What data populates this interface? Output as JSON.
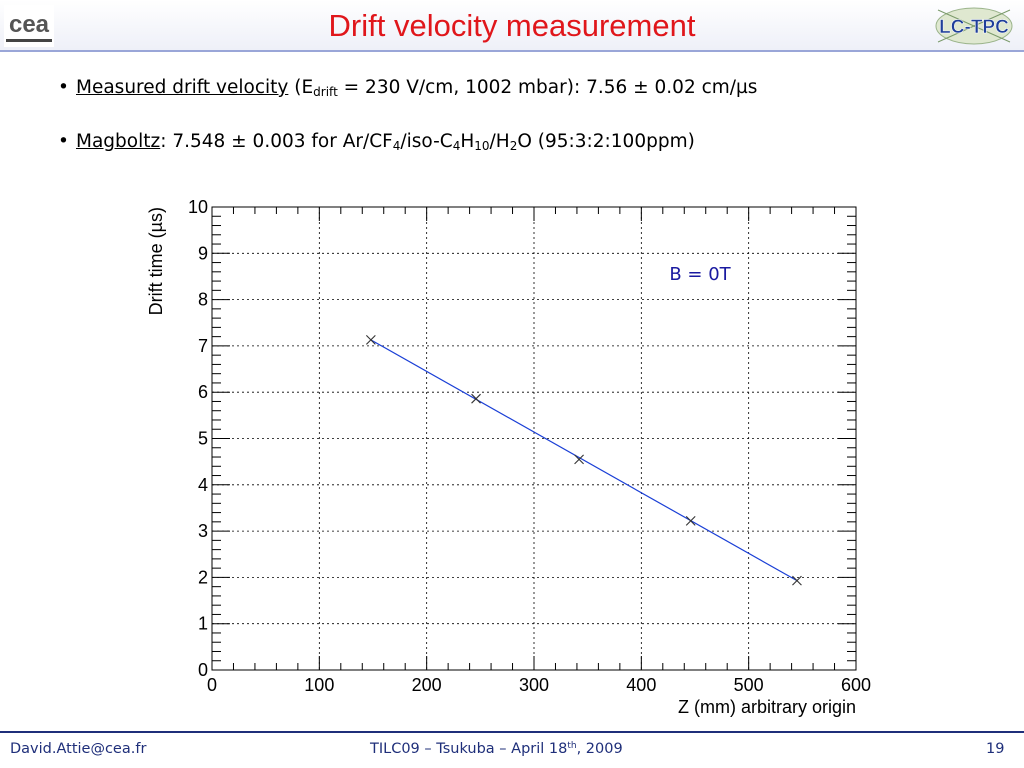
{
  "header": {
    "title": "Drift velocity measurement",
    "logo_left_text": "cea",
    "logo_right_text": "LC-TPC"
  },
  "bullets": [
    {
      "link": "Measured drift velocity",
      "pre": " (E",
      "sub": "drift",
      "post": " = 230 V/cm, 1002 mbar): 7.56 ± 0.02 cm/µs"
    },
    {
      "link": "Magboltz",
      "t1": ": 7.548 ± 0.003 for Ar/CF",
      "s1": "4",
      "t2": "/iso-C",
      "s2": "4",
      "t3": "H",
      "s3": "10",
      "t4": "/H",
      "s4": "2",
      "t5": "O (95:3:2:100ppm)"
    }
  ],
  "chart_data": {
    "type": "scatter",
    "xlabel": "Z (mm) arbitrary origin",
    "ylabel": "Drift time (µs)",
    "xlim": [
      0,
      600
    ],
    "ylim": [
      0,
      10
    ],
    "xticks": [
      0,
      100,
      200,
      300,
      400,
      500,
      600
    ],
    "yticks": [
      0,
      1,
      2,
      3,
      4,
      5,
      6,
      7,
      8,
      9,
      10
    ],
    "grid": true,
    "annotation": "B = 0T",
    "series": [
      {
        "marker": "x",
        "x": [
          148,
          246,
          342,
          446,
          545
        ],
        "y": [
          7.13,
          5.86,
          4.55,
          3.22,
          1.93
        ]
      }
    ],
    "fit": {
      "x": [
        148,
        545
      ],
      "y": [
        7.13,
        1.93
      ]
    },
    "colors": {
      "points": "#333333",
      "fit": "#1a3fd6",
      "annotation": "#1a1aa0"
    }
  },
  "footer": {
    "email": "David.Attie@cea.fr",
    "event_pre": "TILC09 – Tsukuba – April 18",
    "event_sup": "th",
    "event_post": ", 2009",
    "page": "19"
  }
}
